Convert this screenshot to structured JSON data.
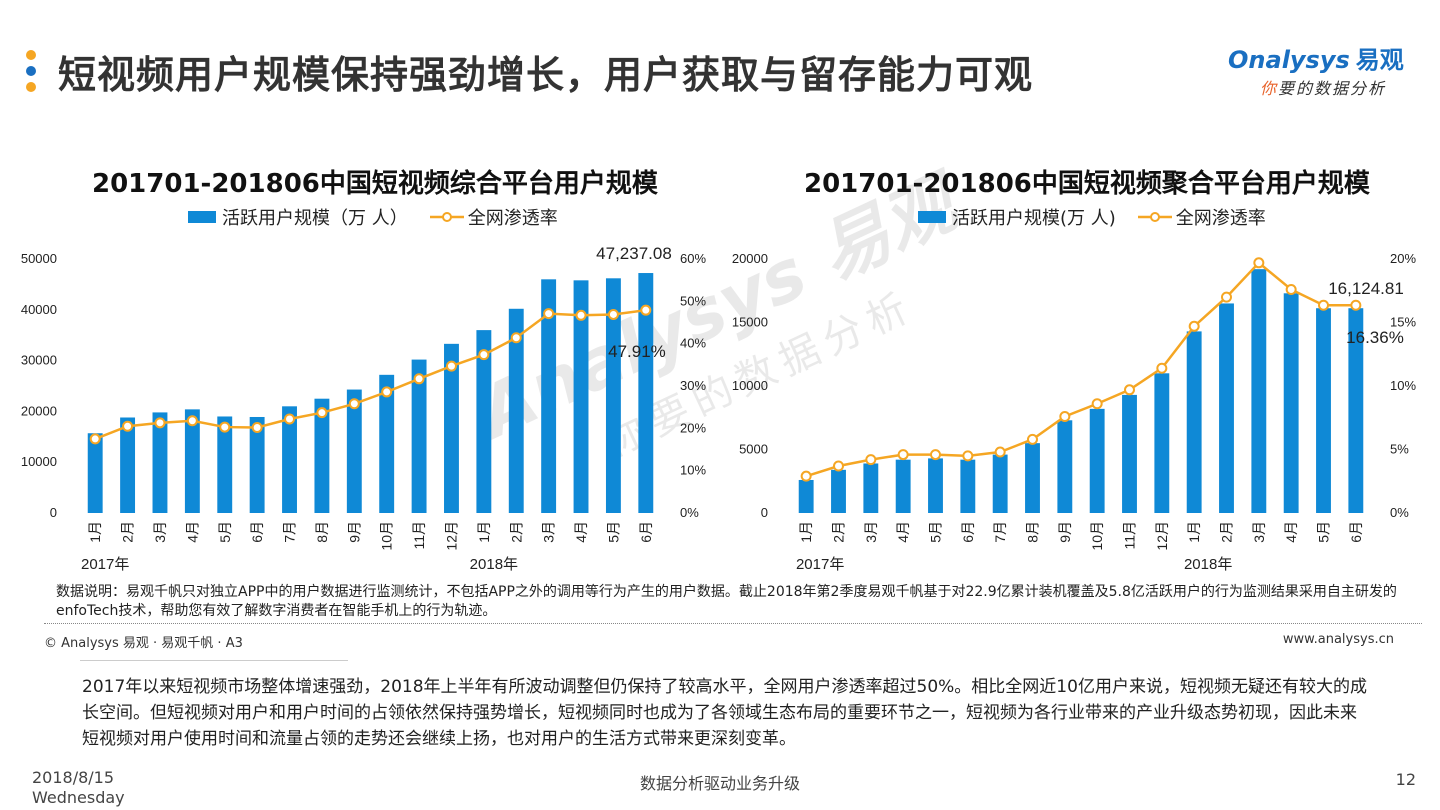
{
  "page": {
    "title": "短视频用户规模保持强劲增长，用户获取与留存能力可观",
    "dot_colors": [
      "#f5a623",
      "#1a6fc1",
      "#f5a623"
    ]
  },
  "logo": {
    "brand": "nalysys",
    "brand_initial": "O",
    "brand_cn": "易观",
    "tagline_first": "你",
    "tagline_rest": "要的数据分析"
  },
  "watermark": {
    "line1": "Analysys 易观",
    "line2": "你要的数据分析"
  },
  "colors": {
    "bar": "#0f89d6",
    "line": "#f5a623"
  },
  "chart_data": [
    {
      "type": "bar",
      "title": "201701-201806中国短视频综合平台用户规模",
      "legend": {
        "bar": "活跃用户规模（万 人）",
        "line": "全网渗透率"
      },
      "categories": [
        "1月",
        "2月",
        "3月",
        "4月",
        "5月",
        "6月",
        "7月",
        "8月",
        "9月",
        "10月",
        "11月",
        "12月",
        "1月",
        "2月",
        "3月",
        "4月",
        "5月",
        "6月"
      ],
      "year_labels": [
        {
          "label": "2017年",
          "index": 0
        },
        {
          "label": "2018年",
          "index": 12
        }
      ],
      "series": [
        {
          "name": "活跃用户规模（万 人）",
          "type": "bar",
          "axis": "left",
          "values": [
            15700,
            18800,
            19800,
            20400,
            19000,
            18900,
            21000,
            22500,
            24300,
            27200,
            30200,
            33300,
            36000,
            40200,
            46000,
            45800,
            46200,
            47237.08
          ]
        },
        {
          "name": "全网渗透率",
          "type": "line",
          "axis": "right",
          "values": [
            17.5,
            20.5,
            21.3,
            21.8,
            20.3,
            20.2,
            22.2,
            23.7,
            25.8,
            28.6,
            31.7,
            34.7,
            37.4,
            41.4,
            47.1,
            46.7,
            46.9,
            47.91
          ]
        }
      ],
      "ylim_left": [
        0,
        50000
      ],
      "yticks_left": [
        "0",
        "10000",
        "20000",
        "30000",
        "40000",
        "50000"
      ],
      "ylim_right": [
        0,
        60
      ],
      "yticks_right": [
        "0%",
        "10%",
        "20%",
        "30%",
        "40%",
        "50%",
        "60%"
      ],
      "annotations": {
        "bar_last": "47,237.08",
        "line_last": "47.91%"
      }
    },
    {
      "type": "bar",
      "title": "201701-201806中国短视频聚合平台用户规模",
      "legend": {
        "bar": "活跃用户规模(万 人)",
        "line": "全网渗透率"
      },
      "categories": [
        "1月",
        "2月",
        "3月",
        "4月",
        "5月",
        "6月",
        "7月",
        "8月",
        "9月",
        "10月",
        "11月",
        "12月",
        "1月",
        "2月",
        "3月",
        "4月",
        "5月",
        "6月"
      ],
      "year_labels": [
        {
          "label": "2017年",
          "index": 0
        },
        {
          "label": "2018年",
          "index": 12
        }
      ],
      "series": [
        {
          "name": "活跃用户规模(万 人)",
          "type": "bar",
          "axis": "left",
          "values": [
            2600,
            3400,
            3900,
            4200,
            4300,
            4200,
            4600,
            5500,
            7300,
            8200,
            9300,
            11000,
            14300,
            16500,
            19200,
            17300,
            16124.81,
            16124.81
          ]
        },
        {
          "name": "全网渗透率",
          "type": "line",
          "axis": "right",
          "values": [
            2.9,
            3.7,
            4.2,
            4.6,
            4.6,
            4.5,
            4.8,
            5.8,
            7.6,
            8.6,
            9.7,
            11.4,
            14.7,
            17.0,
            19.7,
            17.6,
            16.36,
            16.36
          ]
        }
      ],
      "ylim_left": [
        0,
        20000
      ],
      "yticks_left": [
        "0",
        "5000",
        "10000",
        "15000",
        "20000"
      ],
      "ylim_right": [
        0,
        20
      ],
      "yticks_right": [
        "0%",
        "5%",
        "10%",
        "15%",
        "20%"
      ],
      "annotations": {
        "bar_last": "16,124.81",
        "line_last": "16.36%"
      }
    }
  ],
  "note": "数据说明：易观千帆只对独立APP中的用户数据进行监测统计，不包括APP之外的调用等行为产生的用户数据。截止2018年第2季度易观千帆基于对22.9亿累计装机覆盖及5.8亿活跃用户的行为监测结果采用自主研发的enfoTech技术，帮助您有效了解数字消费者在智能手机上的行为轨迹。",
  "copyright": "© Analysys 易观 · 易观千帆 · A3",
  "website": "www.analysys.cn",
  "summary": "2017年以来短视频市场整体增速强劲，2018年上半年有所波动调整但仍保持了较高水平，全网用户渗透率超过50%。相比全网近10亿用户来说，短视频无疑还有较大的成长空间。但短视频对用户和用户时间的占领依然保持强势增长，短视频同时也成为了各领域生态布局的重要环节之一，短视频为各行业带来的产业升级态势初现，因此未来短视频对用户使用时间和流量占领的走势还会继续上扬，也对用户的生活方式带来更深刻变革。",
  "footer": {
    "date": "2018/8/15",
    "weekday": "Wednesday",
    "center": "数据分析驱动业务升级",
    "page_number": "12"
  }
}
